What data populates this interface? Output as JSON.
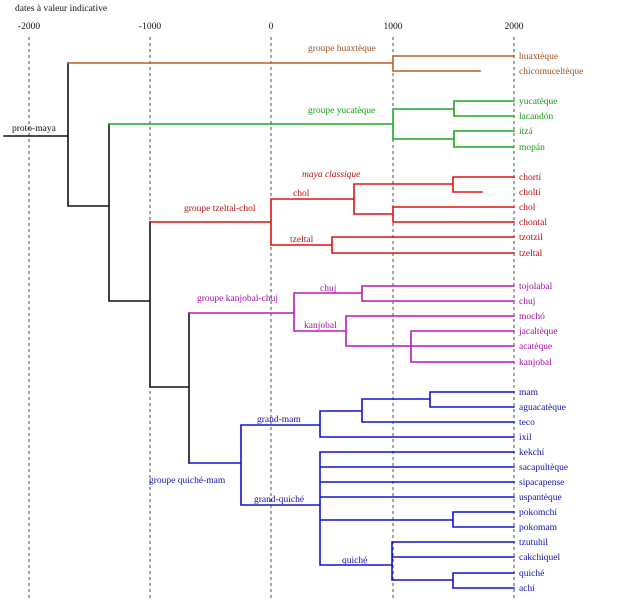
{
  "title": "dates à valeur indicative",
  "axis_ticks": [
    "-2000",
    "-1000",
    "0",
    "1000",
    "2000"
  ],
  "root": "proto-maya",
  "colors": {
    "huaxteque": "#b5602a",
    "yucateque": "#1daa1d",
    "tzeltal_chol": "#dd1414",
    "kanjobal_chuj": "#bb18bb",
    "quiche_mam": "#1414cc",
    "root": "#111111"
  },
  "groups": {
    "huaxteque": {
      "label": "groupe huaxtèque",
      "leaves": [
        "huaxtèque",
        "chicomuceltèque"
      ]
    },
    "yucateque": {
      "label": "groupe yucatèque",
      "leaves": [
        "yucatèque",
        "lacandón",
        "itzá",
        "mopán"
      ]
    },
    "tzeltal_chol": {
      "label": "groupe tzeltal-chol",
      "subgroups": [
        "chol",
        "tzeltal",
        "maya classique"
      ],
      "leaves": [
        "chortí",
        "choltí",
        "chol",
        "chontal",
        "tzotzil",
        "tzeltal"
      ]
    },
    "kanjobal_chuj": {
      "label": "groupe kanjobal-chuj",
      "subgroups": [
        "chuj",
        "kanjobal"
      ],
      "leaves": [
        "tojolabal",
        "chuj",
        "mochó",
        "jacaltèque",
        "acatèque",
        "kanjobal"
      ]
    },
    "quiche_mam": {
      "label": "groupe quiché-mam",
      "subgroups": [
        "grand-mam",
        "grand-quiché",
        "quiché"
      ],
      "leaves": [
        "mam",
        "aguacatèque",
        "teco",
        "ixil",
        "kekchí",
        "sacapultèque",
        "sipacapense",
        "uspantèque",
        "pokomchí",
        "pokomam",
        "tzutuhil",
        "cakchiquel",
        "quiché",
        "achí"
      ]
    }
  }
}
